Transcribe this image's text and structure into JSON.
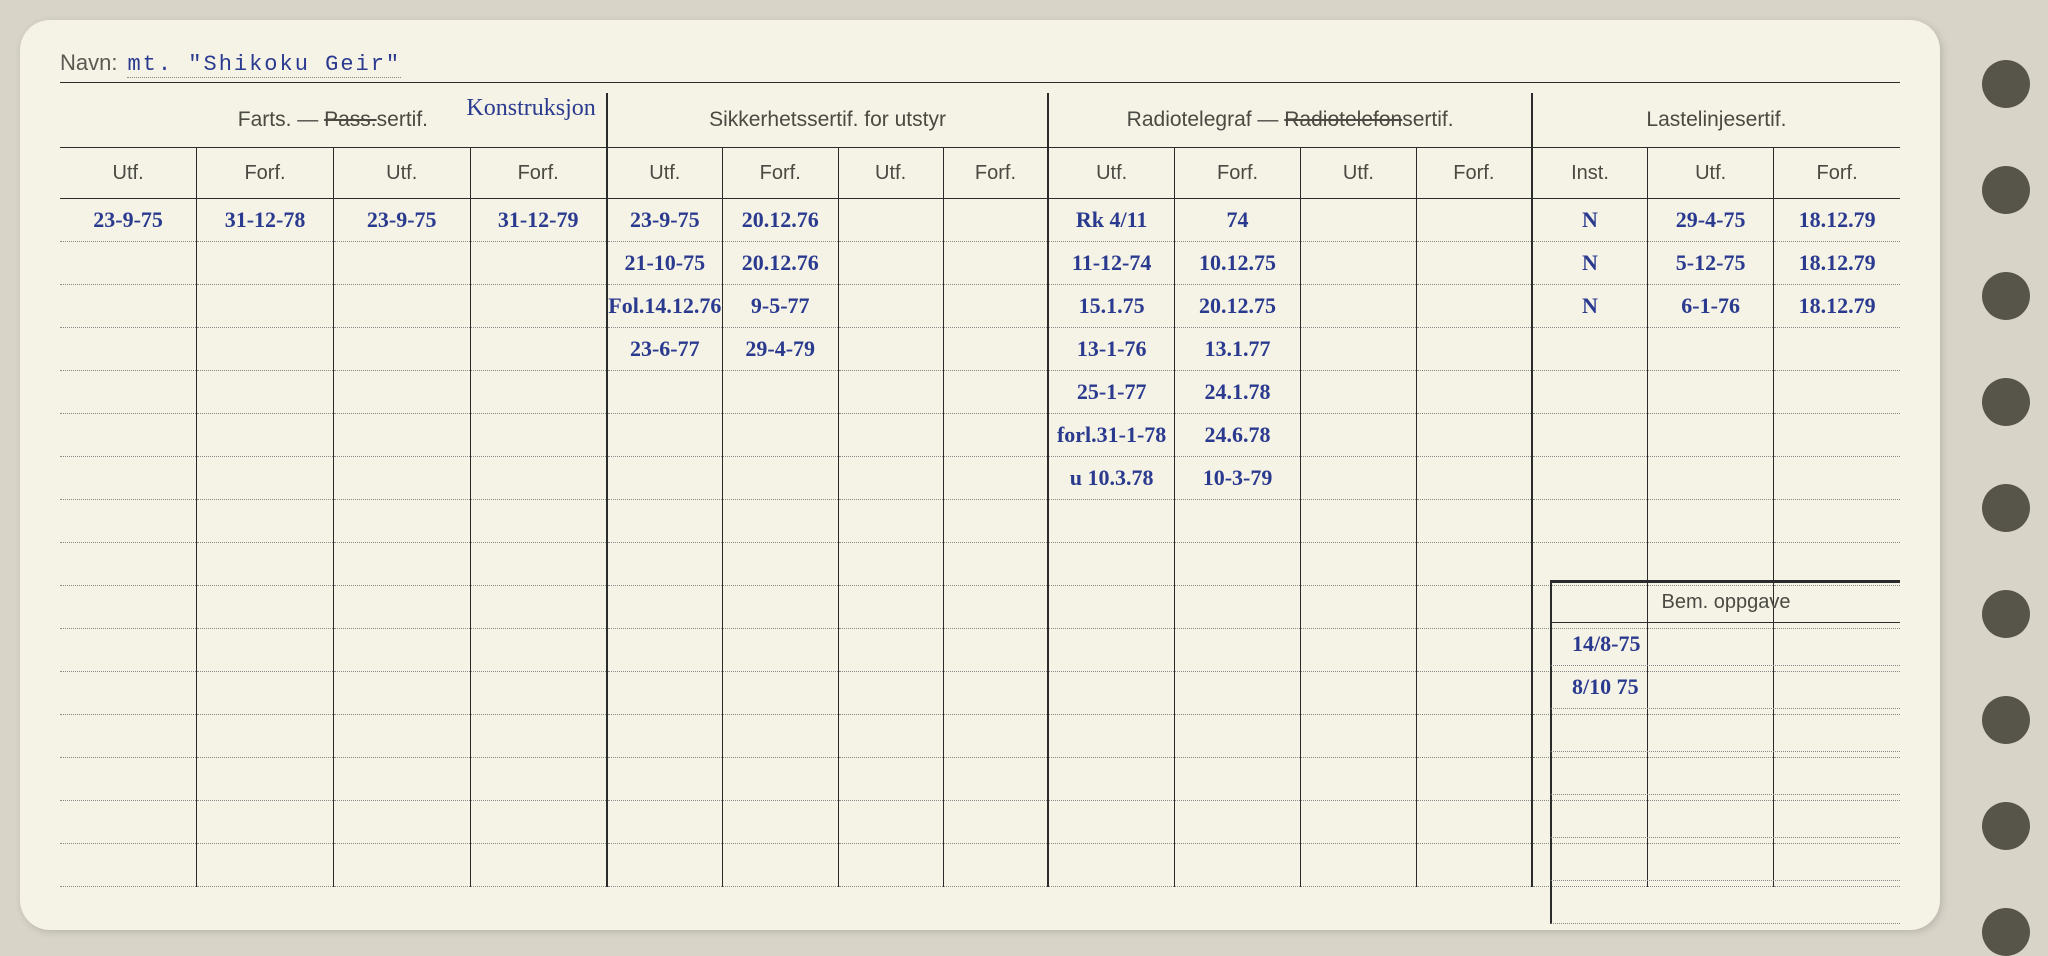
{
  "navn_label": "Navn:",
  "navn_value": "mt. \"Shikoku Geir\"",
  "groups": {
    "farts": {
      "title": "Farts. — Pass.sertif.",
      "annotation": "Konstruksjon"
    },
    "sikk": "Sikkerhetssertif. for utstyr",
    "radio": {
      "title": "Radiotelegraf — Radiotelefonsertif.",
      "strike_part": "Radiotelefon"
    },
    "laste": "Lastelinjesertif."
  },
  "sub": {
    "utf": "Utf.",
    "forf": "Forf.",
    "inst": "Inst."
  },
  "bem_label": "Bem. oppgave",
  "rows": [
    {
      "f1u": "23-9-75",
      "f1f": "31-12-78",
      "f2u": "23-9-75",
      "f2f": "31-12-79",
      "su1": "23-9-75",
      "sf1": "20.12.76",
      "ru1": "Rk 4/11",
      "rf1": "74",
      "li": "N",
      "lu": "29-4-75",
      "lf": "18.12.79"
    },
    {
      "su1": "21-10-75",
      "sf1": "20.12.76",
      "ru1": "11-12-74",
      "rf1": "10.12.75",
      "li": "N",
      "lu": "5-12-75",
      "lf": "18.12.79"
    },
    {
      "su1": "Fol.14.12.76",
      "sf1": "9-5-77",
      "ru1": "15.1.75",
      "rf1": "20.12.75",
      "li": "N",
      "lu": "6-1-76",
      "lf": "18.12.79"
    },
    {
      "su1": "23-6-77",
      "sf1": "29-4-79",
      "ru1": "13-1-76",
      "rf1": "13.1.77"
    },
    {
      "ru1": "25-1-77",
      "rf1": "24.1.78"
    },
    {
      "ru1": "forl.31-1-78",
      "rf1": "24.6.78"
    },
    {
      "ru1": "u 10.3.78",
      "rf1": "10-3-79"
    },
    {},
    {},
    {},
    {},
    {},
    {},
    {},
    {},
    {}
  ],
  "bem_rows": [
    "14/8-75",
    "8/10 75",
    "",
    "",
    "",
    "",
    ""
  ],
  "colors": {
    "ink": "#2a3a8f",
    "print": "#4a4a42",
    "paper": "#f5f2e6",
    "bg": "#d8d4c8"
  }
}
